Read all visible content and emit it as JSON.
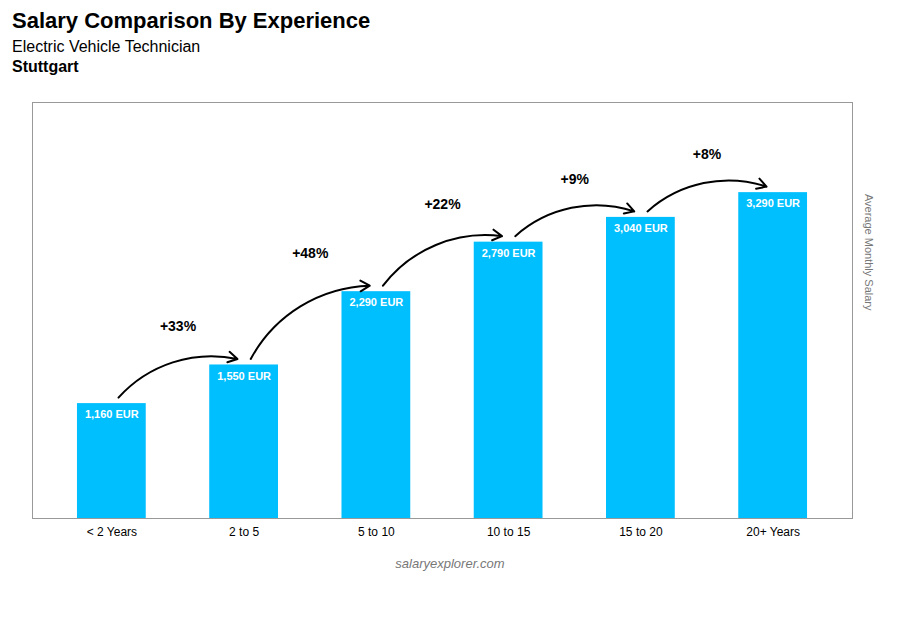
{
  "chart_data": {
    "type": "bar",
    "title": "Salary Comparison By Experience",
    "subtitle": "Electric Vehicle Technician",
    "location": "Stuttgart",
    "footer": "salaryexplorer.com",
    "ylabel": "Average Monthly Salary",
    "categories": [
      "< 2 Years",
      "2 to 5",
      "5 to 10",
      "10 to 15",
      "15 to 20",
      "20+ Years"
    ],
    "values": [
      1160,
      1550,
      2290,
      2790,
      3040,
      3290
    ],
    "value_labels": [
      "1,160 EUR",
      "1,550 EUR",
      "2,290 EUR",
      "2,790 EUR",
      "3,040 EUR",
      "3,290 EUR"
    ],
    "data_labels": true,
    "color": "#00BFFF",
    "ylim": [
      0,
      4200
    ],
    "tick_labels": "x",
    "grid": false,
    "annotations": [
      {
        "text": "+33%",
        "from": "< 2 Years",
        "to": "2 to 5"
      },
      {
        "text": "+48%",
        "from": "2 to 5",
        "to": "5 to 10"
      },
      {
        "text": "+22%",
        "from": "5 to 10",
        "to": "10 to 15"
      },
      {
        "text": "+9%",
        "from": "10 to 15",
        "to": "15 to 20"
      },
      {
        "text": "+8%",
        "from": "15 to 20",
        "to": "20+ Years"
      }
    ]
  }
}
